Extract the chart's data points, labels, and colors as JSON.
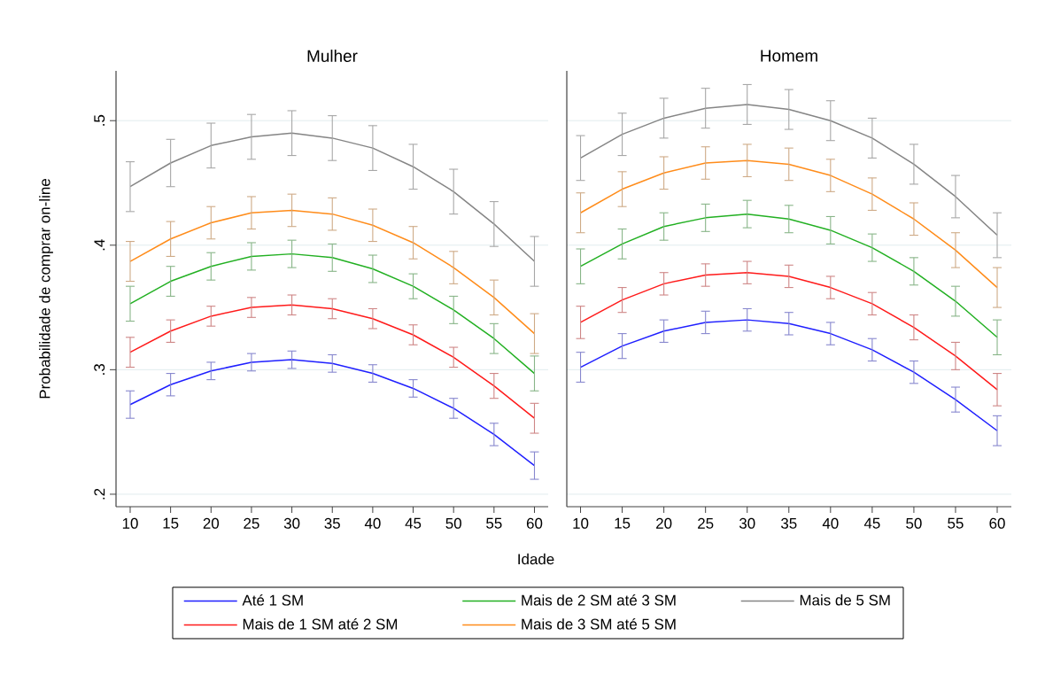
{
  "chart_data": [
    {
      "type": "line",
      "title": "Mulher",
      "xlabel": "Idade",
      "ylabel": "Probabilidade de comprar on-line",
      "x": [
        10,
        15,
        20,
        25,
        30,
        35,
        40,
        45,
        50,
        55,
        60
      ],
      "xlim": [
        8.25,
        61.7
      ],
      "ylim": [
        0.19,
        0.54
      ],
      "xticks": [
        10,
        15,
        20,
        25,
        30,
        35,
        40,
        45,
        50,
        55,
        60
      ],
      "yticks": [
        {
          "value": 0.2,
          "label": ".2"
        },
        {
          "value": 0.3,
          "label": ".3"
        },
        {
          "value": 0.4,
          "label": ".4"
        },
        {
          "value": 0.5,
          "label": ".5"
        }
      ],
      "grid": "y",
      "legend": "bottom",
      "series": [
        {
          "name": "Até 1 SM",
          "color": "#1f1fff",
          "values": [
            0.272,
            0.288,
            0.299,
            0.306,
            0.308,
            0.305,
            0.297,
            0.285,
            0.269,
            0.248,
            0.223
          ],
          "errors": [
            0.011,
            0.009,
            0.007,
            0.007,
            0.007,
            0.007,
            0.007,
            0.007,
            0.008,
            0.009,
            0.011
          ]
        },
        {
          "name": "Mais de 1 SM até 2 SM",
          "color": "#ff1a1a",
          "values": [
            0.314,
            0.331,
            0.343,
            0.35,
            0.352,
            0.349,
            0.341,
            0.328,
            0.31,
            0.287,
            0.261
          ],
          "errors": [
            0.012,
            0.009,
            0.008,
            0.008,
            0.008,
            0.008,
            0.008,
            0.008,
            0.008,
            0.01,
            0.012
          ]
        },
        {
          "name": "Mais de 2 SM até 3 SM",
          "color": "#22b022",
          "values": [
            0.353,
            0.371,
            0.383,
            0.391,
            0.393,
            0.39,
            0.381,
            0.367,
            0.348,
            0.325,
            0.297
          ],
          "errors": [
            0.014,
            0.012,
            0.011,
            0.011,
            0.011,
            0.011,
            0.011,
            0.01,
            0.011,
            0.012,
            0.014
          ]
        },
        {
          "name": "Mais de 3 SM até 5 SM",
          "color": "#ff8c1a",
          "values": [
            0.387,
            0.405,
            0.418,
            0.426,
            0.428,
            0.425,
            0.416,
            0.402,
            0.382,
            0.358,
            0.329
          ],
          "errors": [
            0.016,
            0.014,
            0.013,
            0.013,
            0.013,
            0.013,
            0.013,
            0.013,
            0.013,
            0.014,
            0.016
          ]
        },
        {
          "name": "Mais de 5 SM",
          "color": "#858585",
          "values": [
            0.447,
            0.466,
            0.48,
            0.487,
            0.49,
            0.486,
            0.478,
            0.463,
            0.443,
            0.417,
            0.387
          ],
          "errors": [
            0.02,
            0.019,
            0.018,
            0.018,
            0.018,
            0.018,
            0.018,
            0.018,
            0.018,
            0.018,
            0.02
          ]
        }
      ]
    },
    {
      "type": "line",
      "title": "Homem",
      "x": [
        10,
        15,
        20,
        25,
        30,
        35,
        40,
        45,
        50,
        55,
        60
      ],
      "xlim": [
        8.35,
        61.7
      ],
      "ylim": [
        0.19,
        0.54
      ],
      "xticks": [
        10,
        15,
        20,
        25,
        30,
        35,
        40,
        45,
        50,
        55,
        60
      ],
      "yticks": [
        {
          "value": 0.2,
          "label": null
        },
        {
          "value": 0.3,
          "label": null
        },
        {
          "value": 0.4,
          "label": null
        },
        {
          "value": 0.5,
          "label": null
        }
      ],
      "grid": "y",
      "tick_labels": "x",
      "series": [
        {
          "color": "#1f1fff",
          "values": [
            0.302,
            0.319,
            0.331,
            0.338,
            0.34,
            0.337,
            0.329,
            0.316,
            0.298,
            0.276,
            0.251
          ],
          "errors": [
            0.012,
            0.01,
            0.009,
            0.009,
            0.009,
            0.009,
            0.009,
            0.009,
            0.009,
            0.01,
            0.012
          ]
        },
        {
          "color": "#ff1a1a",
          "values": [
            0.338,
            0.356,
            0.369,
            0.376,
            0.378,
            0.375,
            0.366,
            0.353,
            0.334,
            0.311,
            0.284
          ],
          "errors": [
            0.013,
            0.01,
            0.009,
            0.009,
            0.009,
            0.009,
            0.009,
            0.009,
            0.01,
            0.011,
            0.013
          ]
        },
        {
          "color": "#22b022",
          "values": [
            0.383,
            0.401,
            0.415,
            0.422,
            0.425,
            0.421,
            0.412,
            0.398,
            0.379,
            0.355,
            0.326
          ],
          "errors": [
            0.014,
            0.012,
            0.011,
            0.011,
            0.011,
            0.011,
            0.011,
            0.011,
            0.011,
            0.012,
            0.014
          ]
        },
        {
          "color": "#ff8c1a",
          "values": [
            0.426,
            0.445,
            0.458,
            0.466,
            0.468,
            0.465,
            0.456,
            0.441,
            0.421,
            0.396,
            0.366
          ],
          "errors": [
            0.016,
            0.014,
            0.013,
            0.013,
            0.013,
            0.013,
            0.013,
            0.013,
            0.013,
            0.014,
            0.016
          ]
        },
        {
          "color": "#858585",
          "values": [
            0.47,
            0.489,
            0.502,
            0.51,
            0.513,
            0.509,
            0.5,
            0.486,
            0.465,
            0.439,
            0.408
          ],
          "errors": [
            0.018,
            0.017,
            0.016,
            0.016,
            0.016,
            0.016,
            0.016,
            0.016,
            0.016,
            0.017,
            0.018
          ]
        }
      ]
    }
  ]
}
